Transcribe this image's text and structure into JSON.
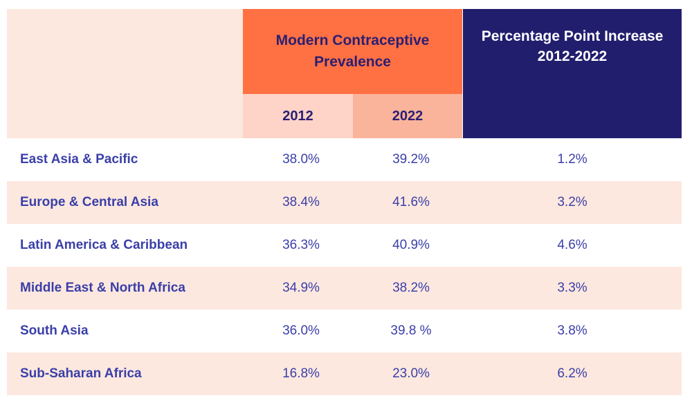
{
  "header": {
    "group_title_line1": "Modern Contraceptive",
    "group_title_line2": "Prevalence",
    "increase_title_line1": "Percentage Point Increase",
    "increase_title_line2": "2012-2022",
    "year_2012": "2012",
    "year_2022": "2022"
  },
  "rows": [
    {
      "region": "East Asia & Pacific",
      "y2012": "38.0%",
      "y2022": "39.2%",
      "increase": "1.2%"
    },
    {
      "region": "Europe & Central Asia",
      "y2012": "38.4%",
      "y2022": "41.6%",
      "increase": "3.2%"
    },
    {
      "region": "Latin America & Caribbean",
      "y2012": "36.3%",
      "y2022": "40.9%",
      "increase": "4.6%"
    },
    {
      "region": "Middle East & North Africa",
      "y2012": "34.9%",
      "y2022": "38.2%",
      "increase": "3.3%"
    },
    {
      "region": "South Asia",
      "y2012": "36.0%",
      "y2022": "39.8 %",
      "increase": "3.8%"
    },
    {
      "region": "Sub-Saharan Africa",
      "y2012": "16.8%",
      "y2022": "23.0%",
      "increase": "6.2%"
    }
  ],
  "colors": {
    "orange": "#ff7043",
    "navy": "#221e6e",
    "light_peach": "#fde8df",
    "peach_2012": "#fdd4c7",
    "peach_2022": "#fab49b",
    "text_blue": "#3a3fa8"
  },
  "chart_data": {
    "type": "table",
    "columns": [
      "",
      "2012",
      "2022",
      "Percentage Point Increase 2012-2022"
    ],
    "categories": [
      "East Asia & Pacific",
      "Europe & Central Asia",
      "Latin America & Caribbean",
      "Middle East & North Africa",
      "South Asia",
      "Sub-Saharan Africa"
    ],
    "series": [
      {
        "name": "2012",
        "values": [
          38.0,
          38.4,
          36.3,
          34.9,
          36.0,
          16.8
        ]
      },
      {
        "name": "2022",
        "values": [
          39.2,
          41.6,
          40.9,
          38.2,
          39.8,
          23.0
        ]
      },
      {
        "name": "Percentage Point Increase 2012-2022",
        "values": [
          1.2,
          3.2,
          4.6,
          3.3,
          3.8,
          6.2
        ]
      }
    ]
  }
}
